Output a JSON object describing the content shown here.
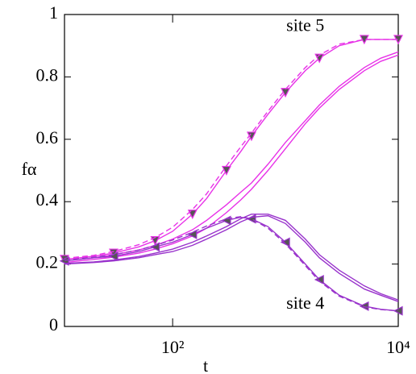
{
  "chart_data": {
    "type": "line",
    "xlabel": "t",
    "ylabel": "fα",
    "xscale": "log",
    "x": [
      11,
      20,
      30,
      50,
      70,
      100,
      150,
      200,
      300,
      400,
      500,
      700,
      1000,
      1500,
      2000,
      3000,
      5000,
      7000,
      10000
    ],
    "xlim": [
      11,
      10000
    ],
    "xticks": [
      {
        "value": 100,
        "label": "10²"
      },
      {
        "value": 10000,
        "label": "10⁴"
      }
    ],
    "ylim": [
      0,
      1
    ],
    "yticks": [
      0,
      0.2,
      0.4,
      0.6,
      0.8,
      1
    ],
    "series": [
      {
        "color": "#e832e8",
        "marker": "triangle-down",
        "dash": false,
        "values": [
          0.215,
          0.225,
          0.235,
          0.255,
          0.275,
          0.305,
          0.36,
          0.41,
          0.5,
          0.56,
          0.61,
          0.68,
          0.75,
          0.82,
          0.86,
          0.9,
          0.92,
          0.92,
          0.92
        ]
      },
      {
        "color": "#e832e8",
        "marker": null,
        "dash": true,
        "values": [
          0.218,
          0.228,
          0.24,
          0.262,
          0.285,
          0.318,
          0.375,
          0.425,
          0.515,
          0.575,
          0.62,
          0.69,
          0.76,
          0.83,
          0.87,
          0.905,
          0.92,
          0.92,
          0.92
        ]
      },
      {
        "color": "#e832e8",
        "marker": null,
        "dash": false,
        "values": [
          0.21,
          0.22,
          0.23,
          0.245,
          0.26,
          0.28,
          0.31,
          0.34,
          0.39,
          0.43,
          0.46,
          0.52,
          0.59,
          0.66,
          0.71,
          0.77,
          0.83,
          0.86,
          0.88
        ]
      },
      {
        "color": "#e832e8",
        "marker": null,
        "dash": false,
        "values": [
          0.205,
          0.215,
          0.222,
          0.235,
          0.248,
          0.265,
          0.29,
          0.315,
          0.365,
          0.405,
          0.44,
          0.5,
          0.57,
          0.65,
          0.7,
          0.76,
          0.82,
          0.85,
          0.87
        ]
      },
      {
        "color": "#9933cc",
        "marker": "triangle-left",
        "dash": false,
        "values": [
          0.21,
          0.22,
          0.225,
          0.24,
          0.255,
          0.27,
          0.295,
          0.315,
          0.34,
          0.35,
          0.345,
          0.32,
          0.27,
          0.2,
          0.15,
          0.1,
          0.065,
          0.055,
          0.05
        ]
      },
      {
        "color": "#9933cc",
        "marker": null,
        "dash": true,
        "values": [
          0.212,
          0.222,
          0.23,
          0.245,
          0.26,
          0.277,
          0.302,
          0.322,
          0.345,
          0.352,
          0.345,
          0.315,
          0.265,
          0.195,
          0.145,
          0.097,
          0.063,
          0.054,
          0.05
        ]
      },
      {
        "color": "#9933cc",
        "marker": null,
        "dash": false,
        "values": [
          0.2,
          0.205,
          0.21,
          0.22,
          0.23,
          0.24,
          0.26,
          0.28,
          0.31,
          0.335,
          0.35,
          0.355,
          0.33,
          0.27,
          0.22,
          0.17,
          0.12,
          0.1,
          0.08
        ]
      },
      {
        "color": "#9933cc",
        "marker": null,
        "dash": false,
        "values": [
          0.202,
          0.207,
          0.213,
          0.224,
          0.235,
          0.248,
          0.27,
          0.29,
          0.32,
          0.345,
          0.36,
          0.36,
          0.34,
          0.28,
          0.23,
          0.18,
          0.13,
          0.105,
          0.085
        ]
      }
    ],
    "annotations": [
      {
        "text": "site 5",
        "x": 1500,
        "y": 0.96,
        "color": "#e832e8"
      },
      {
        "text": "site 4",
        "x": 1500,
        "y": 0.07,
        "color": "#9933cc"
      }
    ]
  }
}
